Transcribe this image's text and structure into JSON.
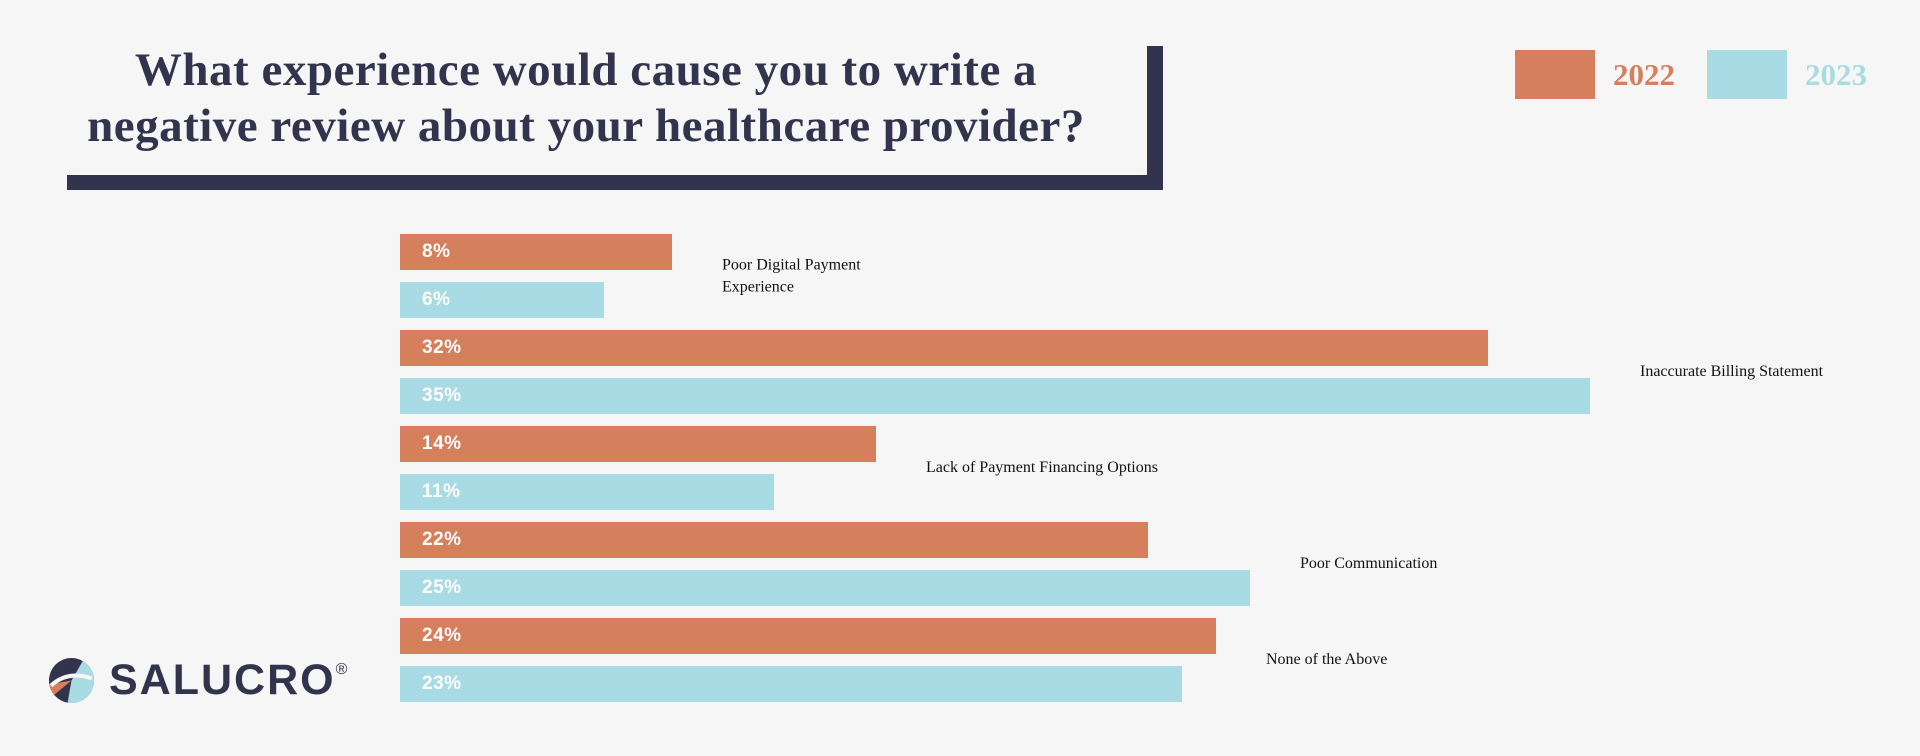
{
  "title": {
    "line1": "What experience would cause you to write a",
    "line2": "negative review about your healthcare provider?"
  },
  "legend": [
    {
      "label": "2022",
      "color": "#D57F5C"
    },
    {
      "label": "2023",
      "color": "#A8DBE3"
    }
  ],
  "logo": {
    "text": "SALUCRO",
    "registered": "®"
  },
  "colors": {
    "background": "#F7F6F6",
    "navy": "#32344E",
    "bar_2022": "#D57F5C",
    "bar_2023": "#A8DBE3"
  },
  "chart_data": {
    "type": "bar",
    "orientation": "horizontal",
    "title": "What experience would cause you to write a negative review about your healthcare provider?",
    "categories": [
      "Poor Digital Payment Experience",
      "Inaccurate Billing Statement",
      "Lack of Payment Financing Options",
      "Poor Communication",
      "None of the Above"
    ],
    "series": [
      {
        "name": "2022",
        "color": "#D57F5C",
        "values": [
          8,
          32,
          14,
          22,
          24
        ]
      },
      {
        "name": "2023",
        "color": "#A8DBE3",
        "values": [
          6,
          35,
          11,
          25,
          23
        ]
      }
    ],
    "value_suffix": "%",
    "xlim": [
      0,
      40
    ],
    "grid": false,
    "legend_position": "top-right",
    "value_labels": "inside-start"
  }
}
